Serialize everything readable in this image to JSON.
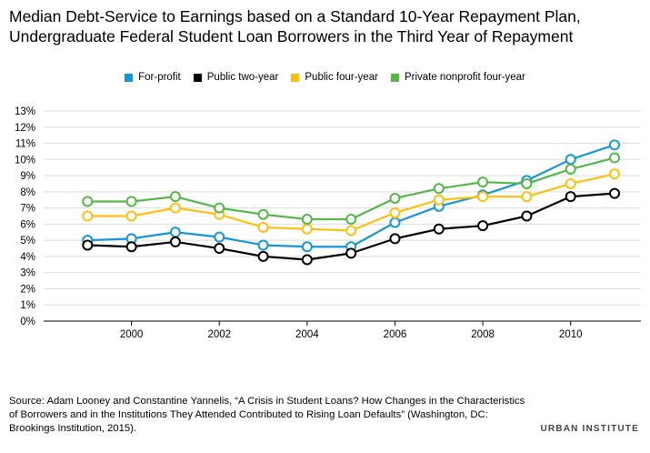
{
  "title_line1": "Median Debt-Service to Earnings based on a Standard 10-Year Repayment Plan,",
  "title_line2": "Undergraduate Federal Student Loan Borrowers in the Third Year of Repayment",
  "source_line1": "Source: Adam Looney and Constantine Yannelis, “A Crisis in Student Loans? How Changes in the Characteristics",
  "source_line2": "of Borrowers and in the Institutions They Attended Contributed to Rising Loan Defaults” (Washington, DC:",
  "source_line3": "Brookings Institution, 2015).",
  "brand": "URBAN INSTITUTE",
  "chart_data": {
    "type": "line",
    "x": [
      1999,
      2000,
      2001,
      2002,
      2003,
      2004,
      2005,
      2006,
      2007,
      2008,
      2009,
      2010,
      2011
    ],
    "xlim": [
      1998,
      2011.6
    ],
    "xticks": [
      2000,
      2002,
      2004,
      2006,
      2008,
      2010
    ],
    "ylim": [
      0,
      13
    ],
    "yticks": [
      "0%",
      "1%",
      "2%",
      "3%",
      "4%",
      "5%",
      "6%",
      "7%",
      "8%",
      "9%",
      "10%",
      "11%",
      "12%",
      "13%"
    ],
    "grid": true,
    "legend_position": "top",
    "series": [
      {
        "name": "For-profit",
        "color": "#1696d2",
        "values": [
          5.0,
          5.1,
          5.5,
          5.2,
          4.7,
          4.6,
          4.6,
          6.1,
          7.1,
          7.8,
          8.7,
          10.0,
          10.9
        ]
      },
      {
        "name": "Public two-year",
        "color": "#000000",
        "values": [
          4.7,
          4.6,
          4.9,
          4.5,
          4.0,
          3.8,
          4.2,
          5.1,
          5.7,
          5.9,
          6.5,
          7.7,
          7.9
        ]
      },
      {
        "name": "Public four-year",
        "color": "#fdbf11",
        "values": [
          6.5,
          6.5,
          7.0,
          6.6,
          5.8,
          5.7,
          5.6,
          6.7,
          7.5,
          7.7,
          7.7,
          8.5,
          9.1
        ]
      },
      {
        "name": "Private nonprofit four-year",
        "color": "#55b748",
        "values": [
          7.4,
          7.4,
          7.7,
          7.0,
          6.6,
          6.3,
          6.3,
          7.6,
          8.2,
          8.6,
          8.5,
          9.4,
          10.1
        ]
      }
    ]
  }
}
